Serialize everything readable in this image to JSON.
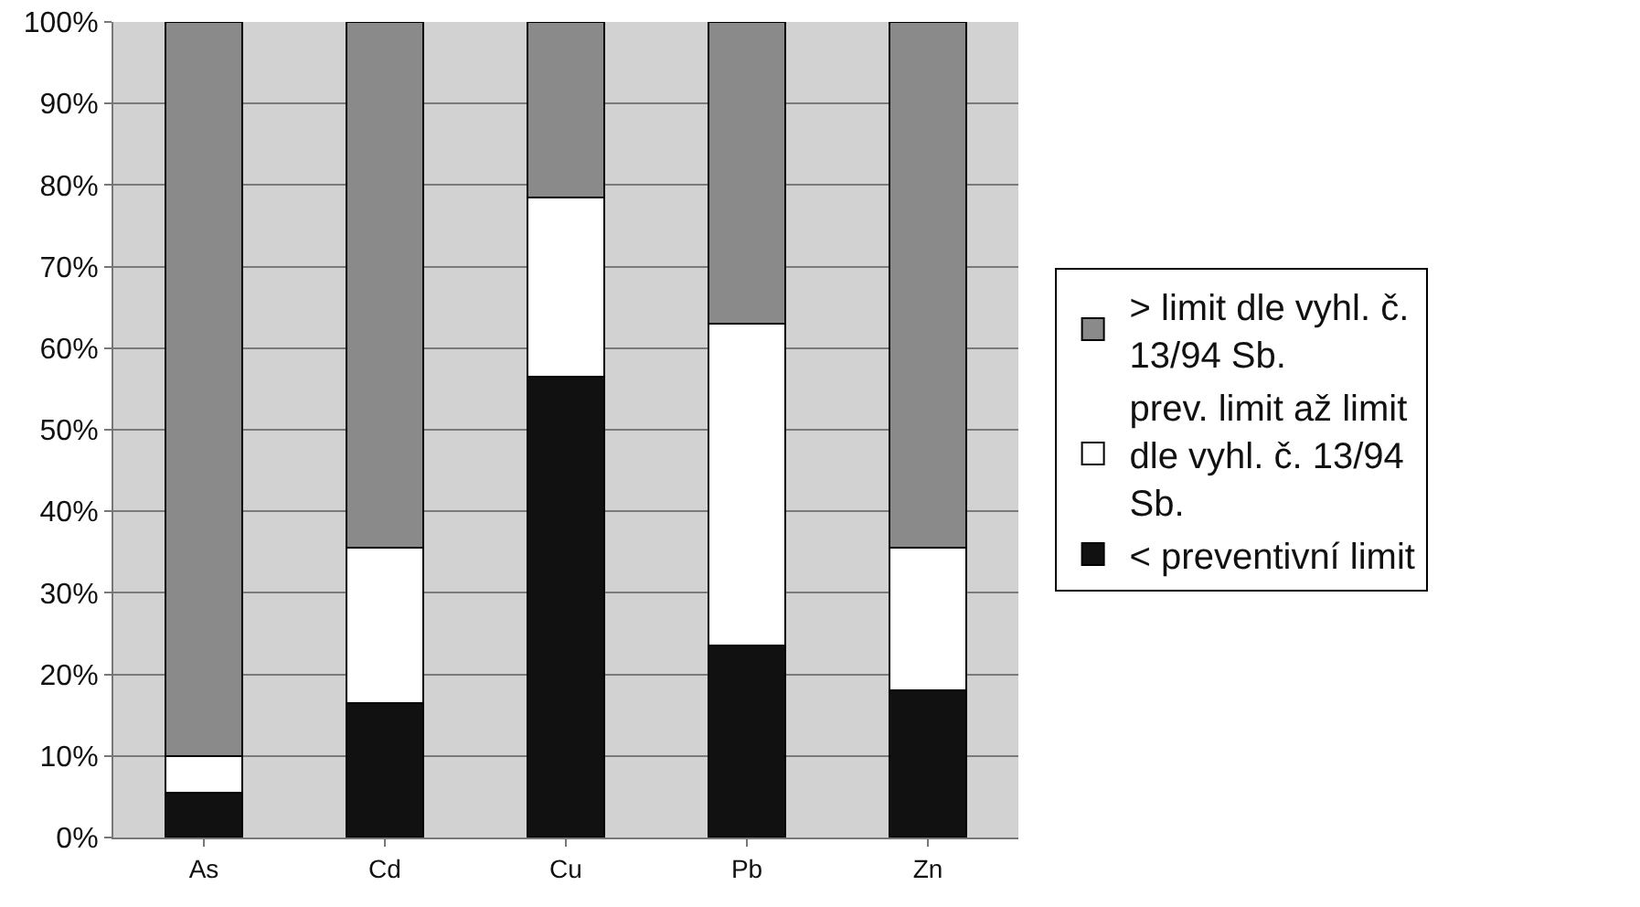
{
  "chart_data": {
    "type": "bar",
    "stacked": true,
    "categories": [
      "As",
      "Cd",
      "Cu",
      "Pb",
      "Zn"
    ],
    "series": [
      {
        "name": "< preventivní limit",
        "color": "#111111",
        "values": [
          5.5,
          16.5,
          56.5,
          23.5,
          18
        ]
      },
      {
        "name": "prev. limit až limit dle vyhl. č. 13/94 Sb.",
        "color": "#ffffff",
        "values": [
          4.5,
          19,
          22,
          39.5,
          17.5
        ]
      },
      {
        "name": "> limit dle vyhl. č. 13/94 Sb.",
        "color": "#8a8a8a",
        "values": [
          90,
          64.5,
          21.5,
          37,
          64.5
        ]
      }
    ],
    "ylim": [
      0,
      100
    ],
    "yticks": [
      {
        "value": 0,
        "label": "0%"
      },
      {
        "value": 10,
        "label": "10%"
      },
      {
        "value": 20,
        "label": "20%"
      },
      {
        "value": 30,
        "label": "30%"
      },
      {
        "value": 40,
        "label": "40%"
      },
      {
        "value": 50,
        "label": "50%"
      },
      {
        "value": 60,
        "label": "60%"
      },
      {
        "value": 70,
        "label": "70%"
      },
      {
        "value": 80,
        "label": "80%"
      },
      {
        "value": 90,
        "label": "90%"
      },
      {
        "value": 100,
        "label": "100%"
      }
    ],
    "grid": "y",
    "legend": "right"
  }
}
